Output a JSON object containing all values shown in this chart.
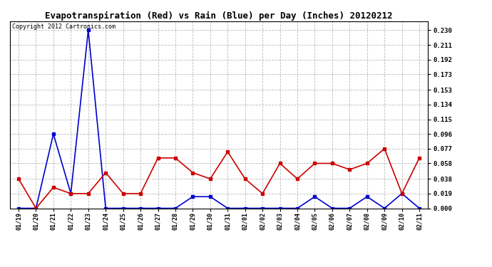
{
  "title": "Evapotranspiration (Red) vs Rain (Blue) per Day (Inches) 20120212",
  "copyright_text": "Copyright 2012 Cartronics.com",
  "x_labels": [
    "01/19",
    "01/20",
    "01/21",
    "01/22",
    "01/23",
    "01/24",
    "01/25",
    "01/26",
    "01/27",
    "01/28",
    "01/29",
    "01/30",
    "01/31",
    "02/01",
    "02/02",
    "02/03",
    "02/04",
    "02/05",
    "02/06",
    "02/07",
    "02/08",
    "02/09",
    "02/10",
    "02/11"
  ],
  "red_data": [
    0.038,
    0.0,
    0.027,
    0.019,
    0.019,
    0.046,
    0.019,
    0.019,
    0.065,
    0.065,
    0.046,
    0.038,
    0.073,
    0.038,
    0.019,
    0.058,
    0.038,
    0.058,
    0.058,
    0.05,
    0.058,
    0.077,
    0.019,
    0.065
  ],
  "blue_data": [
    0.0,
    0.0,
    0.096,
    0.019,
    0.23,
    0.0,
    0.0,
    0.0,
    0.0,
    0.0,
    0.015,
    0.015,
    0.0,
    0.0,
    0.0,
    0.0,
    0.0,
    0.015,
    0.0,
    0.0,
    0.015,
    0.0,
    0.019,
    0.0
  ],
  "y_ticks": [
    0.0,
    0.019,
    0.038,
    0.058,
    0.077,
    0.096,
    0.115,
    0.134,
    0.153,
    0.173,
    0.192,
    0.211,
    0.23
  ],
  "ylim": [
    0.0,
    0.2415
  ],
  "red_color": "#cc0000",
  "blue_color": "#0000cc",
  "background_color": "#ffffff",
  "plot_bg_color": "#ffffff",
  "grid_color": "#bbbbbb",
  "title_fontsize": 9,
  "copyright_fontsize": 6,
  "tick_fontsize": 6,
  "ytick_fontsize": 6.5
}
